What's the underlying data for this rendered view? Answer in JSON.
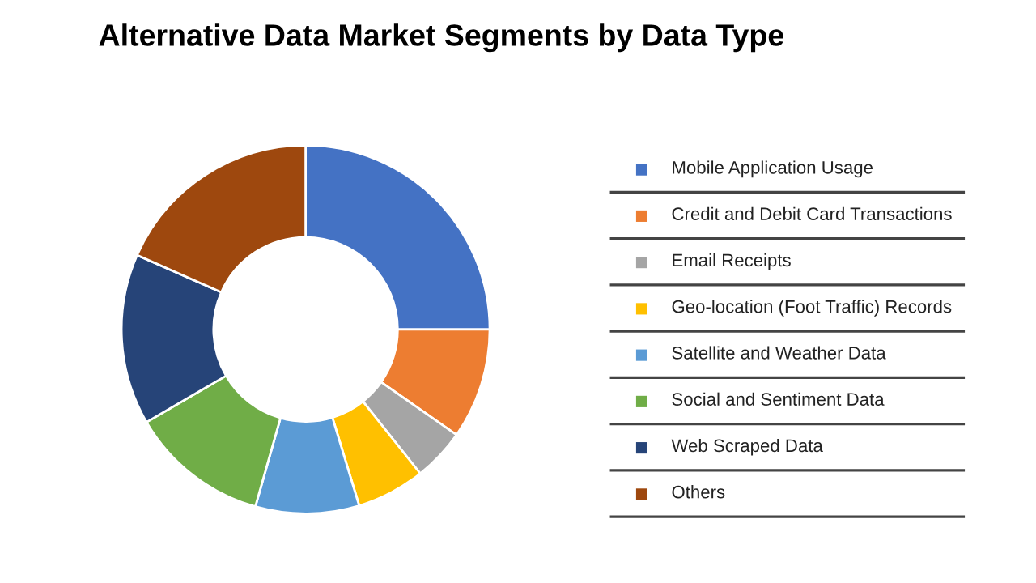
{
  "chart_data": {
    "type": "donut",
    "title": "Alternative Data Market Segments by Data Type",
    "categories": [
      "Mobile Application Usage",
      "Credit and Debit Card Transactions",
      "Email Receipts",
      "Geo-location (Foot Traffic) Records",
      "Satellite and Weather Data",
      "Social and Sentiment Data",
      "Web Scraped Data",
      "Others"
    ],
    "values": [
      25,
      9.7,
      4.6,
      6,
      9.1,
      12.2,
      15,
      18.4
    ],
    "colors": [
      "#4472c4",
      "#ed7d31",
      "#a5a5a5",
      "#ffc000",
      "#5b9bd5",
      "#70ad47",
      "#264478",
      "#9e480e"
    ],
    "legend": "right"
  }
}
